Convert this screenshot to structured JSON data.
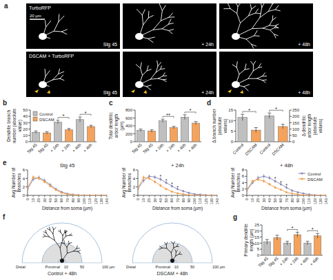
{
  "image_panel": {
    "panel": "a",
    "rows": [
      "TurboRFP",
      "DSCAM + TurboRFP"
    ],
    "columns": [
      "Stg 45",
      "+ 24h",
      "+ 48h"
    ],
    "scale_bar": "20 µm"
  },
  "schematic_panel": {
    "panel": "f",
    "distal": "Distal",
    "proximal": "Proximal",
    "radii": [
      {
        "value": 10,
        "label": "10"
      },
      {
        "value": 50,
        "label": "50"
      },
      {
        "value": 100,
        "label": "100 µm"
      }
    ],
    "captions": [
      "Control + 48h",
      "DSCAM + 48h"
    ]
  },
  "chart_data": [
    {
      "panel": "b",
      "type": "bar",
      "ylabel": "Dendrite branch number (absolute value)",
      "categories": [
        "Stg 45",
        "Stg 45",
        "+ 24h",
        "+ 24h",
        "+ 48h",
        "+ 48h"
      ],
      "series": [
        {
          "name": "Control",
          "color": "#bfbfbf",
          "values": [
            15,
            null,
            31,
            null,
            35,
            null
          ],
          "errors": [
            2,
            null,
            3,
            null,
            4,
            null
          ]
        },
        {
          "name": "DSCAM",
          "color": "#f5a35c",
          "values": [
            null,
            14,
            null,
            19,
            null,
            24
          ],
          "errors": [
            null,
            2,
            null,
            2,
            null,
            2
          ]
        }
      ],
      "ylim": [
        0,
        50
      ],
      "yticks": [
        0,
        10,
        20,
        30,
        40,
        50
      ],
      "legend": "upper left",
      "significance": [
        {
          "text": "*",
          "pair": [
            2,
            3
          ]
        },
        {
          "text": "*",
          "pair": [
            4,
            5
          ]
        }
      ]
    },
    {
      "panel": "c",
      "type": "bar",
      "ylabel": "Total dendritic arbor length (µm)",
      "categories": [
        "Stg 45",
        "Stg 45",
        "+ 24h",
        "+ 24h",
        "+ 48h",
        "+ 48h"
      ],
      "series": [
        {
          "color": "#bfbfbf",
          "values": [
            290,
            null,
            530,
            null,
            620,
            null
          ],
          "errors": [
            30,
            null,
            40,
            null,
            60,
            null
          ]
        },
        {
          "color": "#f5a35c",
          "values": [
            null,
            270,
            null,
            360,
            null,
            470
          ],
          "errors": [
            null,
            30,
            null,
            30,
            null,
            40
          ]
        }
      ],
      "ylim": [
        0,
        800
      ],
      "yticks": [
        0,
        200,
        400,
        600,
        800
      ],
      "significance": [
        {
          "text": "**",
          "pair": [
            2,
            3
          ]
        },
        {
          "text": "*",
          "pair": [
            4,
            5
          ]
        }
      ]
    },
    {
      "panel": "d",
      "type": "bar",
      "ylabel": "Δ branch number (absolute values)",
      "y2label": "Δ dendritic arbor length (absolute values)",
      "categories": [
        "Control",
        "DSCAM",
        "Control",
        "DSCAM"
      ],
      "colors": [
        "#bfbfbf",
        "#f5a35c",
        "#bfbfbf",
        "#f5a35c"
      ],
      "series": [
        {
          "values": [
            11.5,
            5.5,
            null,
            null
          ],
          "errors": [
            1.5,
            1.2,
            null,
            null
          ]
        },
        {
          "axis": "y2",
          "values": [
            null,
            null,
            205,
            120
          ],
          "errors": [
            null,
            null,
            22,
            18
          ]
        }
      ],
      "ylim": [
        0,
        15
      ],
      "yticks": [
        0,
        5,
        10,
        15
      ],
      "y2lim": [
        0,
        250
      ],
      "y2ticks": [
        0,
        50,
        100,
        150,
        200,
        250
      ],
      "significance": [
        {
          "text": "*",
          "pair": [
            0,
            1
          ]
        },
        {
          "text": "*",
          "pair": [
            2,
            3
          ]
        }
      ]
    },
    {
      "panel": "e",
      "type": "line",
      "title": "Stg 45",
      "xlabel": "Distance from soma (µm)",
      "ylabel": "Avg Number of Branches",
      "x": [
        0,
        10,
        20,
        30,
        40,
        50,
        60,
        70,
        80,
        90,
        100,
        110,
        120,
        130,
        140
      ],
      "series": [
        {
          "color": "#8c8cb8",
          "marker": "circle",
          "values": [
            1.5,
            3.8,
            4.2,
            3.5,
            2.5,
            1.5,
            0.8,
            0.4,
            0.2,
            0.1,
            0,
            0,
            0,
            0,
            0
          ],
          "errors": [
            0.3,
            0.5,
            0.5,
            0.5,
            0.4,
            0.3,
            0.2,
            0.2,
            0.1,
            0.1,
            0,
            0,
            0,
            0,
            0
          ]
        },
        {
          "color": "#f0a050",
          "marker": "circle",
          "values": [
            1.8,
            4.3,
            4.0,
            3.2,
            2.2,
            1.3,
            0.6,
            0.3,
            0.1,
            0,
            0,
            0,
            0,
            0,
            0
          ],
          "errors": [
            0.3,
            0.5,
            0.5,
            0.4,
            0.4,
            0.3,
            0.2,
            0.1,
            0.1,
            0,
            0,
            0,
            0,
            0,
            0
          ]
        }
      ],
      "xlim": [
        0,
        140
      ],
      "xticks": [
        0,
        10,
        20,
        30,
        40,
        50,
        60,
        70,
        80,
        90,
        100,
        110,
        120,
        130,
        140
      ],
      "ylim": [
        0,
        6
      ],
      "yticks": [
        0,
        2,
        4,
        6
      ]
    },
    {
      "type": "line",
      "title": "+ 24h",
      "xlabel": "Distance from soma (µm)",
      "ylabel": "Avg Number of Branches",
      "x": [
        0,
        10,
        20,
        30,
        40,
        50,
        60,
        70,
        80,
        90,
        100,
        110,
        120,
        130,
        140
      ],
      "series": [
        {
          "color": "#8c8cb8",
          "marker": "circle",
          "values": [
            1.5,
            3.5,
            4.5,
            4.3,
            3.8,
            3.0,
            2.2,
            1.5,
            1.0,
            0.6,
            0.3,
            0.2,
            0.1,
            0,
            0
          ],
          "errors": [
            0.3,
            0.5,
            0.5,
            0.5,
            0.5,
            0.4,
            0.4,
            0.3,
            0.3,
            0.2,
            0.1,
            0.1,
            0.1,
            0,
            0
          ]
        },
        {
          "color": "#f0a050",
          "marker": "circle",
          "values": [
            1.8,
            4.2,
            4.0,
            3.2,
            2.3,
            1.5,
            0.9,
            0.5,
            0.3,
            0.1,
            0,
            0,
            0,
            0,
            0
          ],
          "errors": [
            0.3,
            0.5,
            0.5,
            0.4,
            0.4,
            0.3,
            0.2,
            0.2,
            0.1,
            0.1,
            0,
            0,
            0,
            0,
            0
          ]
        }
      ],
      "xlim": [
        0,
        140
      ],
      "xticks": [
        0,
        10,
        20,
        30,
        40,
        50,
        60,
        70,
        80,
        90,
        100,
        110,
        120,
        130,
        140
      ],
      "ylim": [
        0,
        6
      ],
      "yticks": [
        0,
        2,
        4,
        6
      ],
      "annotations": [
        {
          "text": "*",
          "x": 40
        },
        {
          "text": "*",
          "x": 50
        },
        {
          "text": "*",
          "x": 60
        },
        {
          "text": "*",
          "x": 70
        }
      ]
    },
    {
      "type": "line",
      "title": "+ 48h",
      "xlabel": "Distance from soma (µm)",
      "ylabel": "Avg Number of Branches",
      "x": [
        0,
        10,
        20,
        30,
        40,
        50,
        60,
        70,
        80,
        90,
        100,
        110,
        120,
        130,
        140
      ],
      "series": [
        {
          "name": "Control",
          "color": "#8c8cb8",
          "marker": "circle",
          "values": [
            1.5,
            4.0,
            5.5,
            6.0,
            5.5,
            4.5,
            3.5,
            2.5,
            1.5,
            1.0,
            0.6,
            0.3,
            0.1,
            0,
            0
          ],
          "errors": [
            0.4,
            0.6,
            0.7,
            0.7,
            0.7,
            0.6,
            0.5,
            0.5,
            0.4,
            0.3,
            0.2,
            0.1,
            0.1,
            0,
            0
          ]
        },
        {
          "name": "DSCAM",
          "color": "#f0a050",
          "marker": "circle",
          "values": [
            1.8,
            4.5,
            5.0,
            4.5,
            3.5,
            2.5,
            1.8,
            1.0,
            0.6,
            0.3,
            0.1,
            0,
            0,
            0,
            0
          ],
          "errors": [
            0.4,
            0.6,
            0.6,
            0.6,
            0.5,
            0.4,
            0.3,
            0.3,
            0.2,
            0.1,
            0.1,
            0,
            0,
            0,
            0
          ]
        }
      ],
      "xlim": [
        0,
        140
      ],
      "xticks": [
        0,
        10,
        20,
        30,
        40,
        50,
        60,
        70,
        80,
        90,
        100,
        110,
        120,
        130,
        140
      ],
      "ylim": [
        0,
        8
      ],
      "yticks": [
        0,
        2,
        4,
        6,
        8
      ],
      "legend": "upper right",
      "annotations": [
        {
          "text": "*",
          "x": 50
        },
        {
          "text": "*",
          "x": 60
        },
        {
          "text": "*",
          "x": 70
        }
      ]
    },
    {
      "panel": "g",
      "type": "bar",
      "ylabel": "Primary dendrite length (µm)",
      "categories": [
        "Stg 45",
        "Stg 45",
        "+ 24h",
        "+ 24h",
        "+ 48h",
        "+ 48h"
      ],
      "series": [
        {
          "color": "#bfbfbf",
          "values": [
            11,
            null,
            10,
            null,
            10,
            null
          ],
          "errors": [
            2,
            null,
            1.5,
            null,
            1.5,
            null
          ]
        },
        {
          "color": "#f5a35c",
          "values": [
            null,
            14.5,
            null,
            17,
            null,
            16
          ],
          "errors": [
            null,
            2,
            null,
            2,
            null,
            2
          ]
        }
      ],
      "ylim": [
        0,
        25
      ],
      "yticks": [
        0,
        5,
        10,
        15,
        20,
        25
      ],
      "significance": [
        {
          "text": "*",
          "pair": [
            2,
            3
          ]
        },
        {
          "text": "*",
          "pair": [
            4,
            5
          ]
        }
      ]
    }
  ]
}
